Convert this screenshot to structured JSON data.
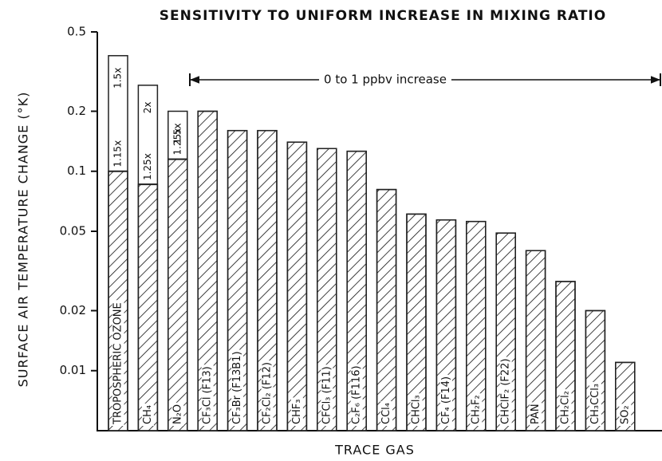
{
  "chart_data": {
    "type": "bar",
    "title": "SENSITIVITY TO UNIFORM INCREASE IN MIXING RATIO",
    "ylabel": "SURFACE AIR TEMPERATURE CHANGE (°K)",
    "xlabel": "TRACE GAS",
    "annotation": "0 to 1 ppbv increase",
    "log_scale": true,
    "ylim": [
      0.005,
      0.5
    ],
    "yticks": [
      0.5,
      0.2,
      0.1,
      0.05,
      0.02,
      0.01
    ],
    "color": "#222222",
    "categories": [
      "TROPOSPHERIC OZONE",
      "CH₄",
      "N₂O",
      "CF₃Cl (F13)",
      "CF₃Br (F13B1)",
      "CF₂Cl₂ (F12)",
      "CHF₃",
      "CFCl₃ (F11)",
      "C₂F₆ (F116)",
      "CCl₄",
      "CHCl₃",
      "CF₄ (F14)",
      "CH₂F₂",
      "CHClF₂ (F22)",
      "PAN",
      "CH₂Cl₂",
      "CH₃CCl₃",
      "SO₂"
    ],
    "values": [
      0.38,
      0.27,
      0.2,
      0.2,
      0.16,
      0.16,
      0.14,
      0.13,
      0.126,
      0.081,
      0.061,
      0.057,
      0.056,
      0.049,
      0.04,
      0.028,
      0.02,
      0.011
    ],
    "split_values": [
      0.1,
      0.086,
      0.115,
      null,
      null,
      null,
      null,
      null,
      null,
      null,
      null,
      null,
      null,
      null,
      null,
      null,
      null,
      null
    ],
    "split_labels_low": [
      "1.15x",
      "1.25x",
      "1.25x",
      null,
      null,
      null,
      null,
      null,
      null,
      null,
      null,
      null,
      null,
      null,
      null,
      null,
      null,
      null
    ],
    "split_labels_high": [
      "1.5x",
      "2x",
      "1.5x",
      null,
      null,
      null,
      null,
      null,
      null,
      null,
      null,
      null,
      null,
      null,
      null,
      null,
      null,
      null
    ]
  }
}
